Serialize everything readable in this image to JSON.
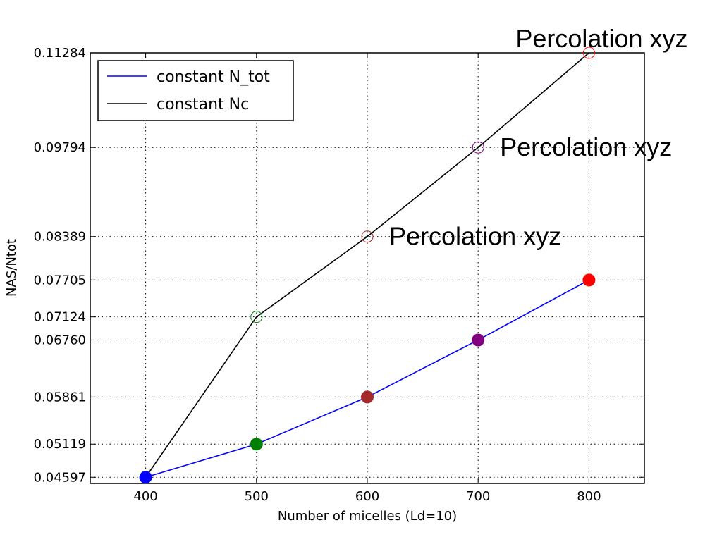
{
  "chart_data": {
    "type": "line",
    "xlabel": "Number of micelles (Ld=10)",
    "ylabel": "NAS/Ntot",
    "xlim": [
      350,
      850
    ],
    "ylim": [
      0.045,
      0.11284
    ],
    "x_ticks": [
      "400",
      "500",
      "600",
      "700",
      "800"
    ],
    "y_ticks": [
      "0.04597",
      "0.05119",
      "0.05861",
      "0.06760",
      "0.07124",
      "0.07705",
      "0.08389",
      "0.09794",
      "0.11284"
    ],
    "grid": true,
    "legend_position": "top-left",
    "series": [
      {
        "name": "constant N_tot",
        "color": "#0000ff",
        "marker": "filled-circle",
        "points": [
          {
            "x": 400,
            "y": 0.04597,
            "color": "#0000ff"
          },
          {
            "x": 500,
            "y": 0.05119,
            "color": "#008000"
          },
          {
            "x": 600,
            "y": 0.05861,
            "color": "#a52a2a"
          },
          {
            "x": 700,
            "y": 0.0676,
            "color": "#800080"
          },
          {
            "x": 800,
            "y": 0.07705,
            "color": "#ff0000"
          }
        ]
      },
      {
        "name": "constant Nc",
        "color": "#000000",
        "marker": "open-circle",
        "points": [
          {
            "x": 400,
            "y": 0.04597,
            "color": "#0000ff"
          },
          {
            "x": 500,
            "y": 0.07124,
            "color": "#008000"
          },
          {
            "x": 600,
            "y": 0.08389,
            "color": "#a52a2a"
          },
          {
            "x": 700,
            "y": 0.09794,
            "color": "#800080"
          },
          {
            "x": 800,
            "y": 0.11284,
            "color": "#ff0000"
          }
        ]
      }
    ],
    "annotations": [
      {
        "text": "Percolation xyz",
        "x": 600,
        "y": 0.08389
      },
      {
        "text": "Percolation xyz",
        "x": 700,
        "y": 0.09794
      },
      {
        "text": "Percolation xyz",
        "x": 800,
        "y": 0.11284
      }
    ]
  }
}
